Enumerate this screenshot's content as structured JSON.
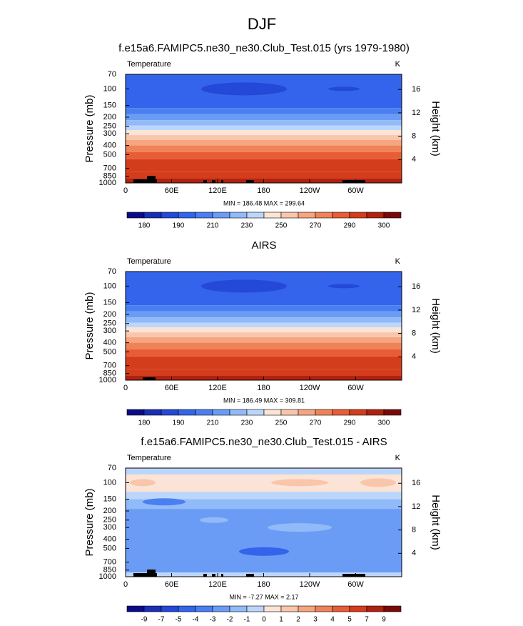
{
  "title": "DJF",
  "chart_data": [
    {
      "type": "contour",
      "title": "f.e15a6.FAMIPC5.ne30_ne30.Club_Test.015 (yrs 1979-1980)",
      "left_label": "Temperature",
      "right_label": "K",
      "ylabel": "Pressure (mb)",
      "y2label": "Height (km)",
      "ylim": [
        1000,
        70
      ],
      "log_y": true,
      "yticks": [
        70,
        100,
        150,
        200,
        250,
        300,
        400,
        500,
        700,
        850,
        1000
      ],
      "y2lim": [
        0,
        18.6
      ],
      "y2ticks": [
        4,
        8,
        12,
        16
      ],
      "xlim": [
        0,
        360
      ],
      "xticks": [
        0,
        {
          "value": 60,
          "label": "60E"
        },
        {
          "value": 120,
          "label": "120E"
        },
        180,
        {
          "value": 240,
          "label": "120W"
        },
        {
          "value": 300,
          "label": "60W"
        }
      ],
      "caption": "MIN = 186.48  MAX = 299.64",
      "colorbar_labels": [
        180,
        190,
        210,
        230,
        250,
        270,
        290,
        300
      ],
      "colors": [
        "#0b0b8a",
        "#1a2fb5",
        "#2448d8",
        "#3464eb",
        "#4a7ff2",
        "#6b9cf5",
        "#91baf8",
        "#bcd6fb",
        "#fbe4d6",
        "#f9c6ab",
        "#f5a580",
        "#f08258",
        "#e85c36",
        "#d43d1b",
        "#b02210",
        "#7a0a08"
      ]
    },
    {
      "type": "contour",
      "title": "AIRS",
      "left_label": "Temperature",
      "right_label": "K",
      "ylabel": "Pressure (mb)",
      "y2label": "Height (km)",
      "ylim": [
        1000,
        70
      ],
      "log_y": true,
      "yticks": [
        70,
        100,
        150,
        200,
        250,
        300,
        400,
        500,
        700,
        850,
        1000
      ],
      "y2lim": [
        0,
        18.6
      ],
      "y2ticks": [
        4,
        8,
        12,
        16
      ],
      "xlim": [
        0,
        360
      ],
      "xticks": [
        0,
        {
          "value": 60,
          "label": "60E"
        },
        {
          "value": 120,
          "label": "120E"
        },
        180,
        {
          "value": 240,
          "label": "120W"
        },
        {
          "value": 300,
          "label": "60W"
        }
      ],
      "caption": "MIN = 186.49  MAX = 309.81",
      "colorbar_labels": [
        180,
        190,
        210,
        230,
        250,
        270,
        290,
        300
      ],
      "colors": [
        "#0b0b8a",
        "#1a2fb5",
        "#2448d8",
        "#3464eb",
        "#4a7ff2",
        "#6b9cf5",
        "#91baf8",
        "#bcd6fb",
        "#fbe4d6",
        "#f9c6ab",
        "#f5a580",
        "#f08258",
        "#e85c36",
        "#d43d1b",
        "#b02210",
        "#7a0a08"
      ]
    },
    {
      "type": "contour",
      "title": "f.e15a6.FAMIPC5.ne30_ne30.Club_Test.015 - AIRS",
      "left_label": "Temperature",
      "right_label": "K",
      "ylabel": "Pressure (mb)",
      "y2label": "Height (km)",
      "ylim": [
        1000,
        70
      ],
      "log_y": true,
      "yticks": [
        70,
        100,
        150,
        200,
        250,
        300,
        400,
        500,
        700,
        850,
        1000
      ],
      "y2lim": [
        0,
        18.6
      ],
      "y2ticks": [
        4,
        8,
        12,
        16
      ],
      "xlim": [
        0,
        360
      ],
      "xticks": [
        0,
        {
          "value": 60,
          "label": "60E"
        },
        {
          "value": 120,
          "label": "120E"
        },
        180,
        {
          "value": 240,
          "label": "120W"
        },
        {
          "value": 300,
          "label": "60W"
        }
      ],
      "caption": "MIN = -7.27  MAX =  2.17",
      "colorbar_labels": [
        -9,
        -7,
        -5,
        -4,
        -3,
        -2,
        -1,
        0,
        1,
        2,
        3,
        4,
        5,
        7,
        9
      ],
      "colors": [
        "#0b0b8a",
        "#1a2fb5",
        "#2448d8",
        "#3464eb",
        "#4a7ff2",
        "#6b9cf5",
        "#91baf8",
        "#bcd6fb",
        "#fbe4d6",
        "#f9c6ab",
        "#f5a580",
        "#f08258",
        "#e85c36",
        "#d43d1b",
        "#b02210",
        "#7a0a08"
      ]
    }
  ]
}
